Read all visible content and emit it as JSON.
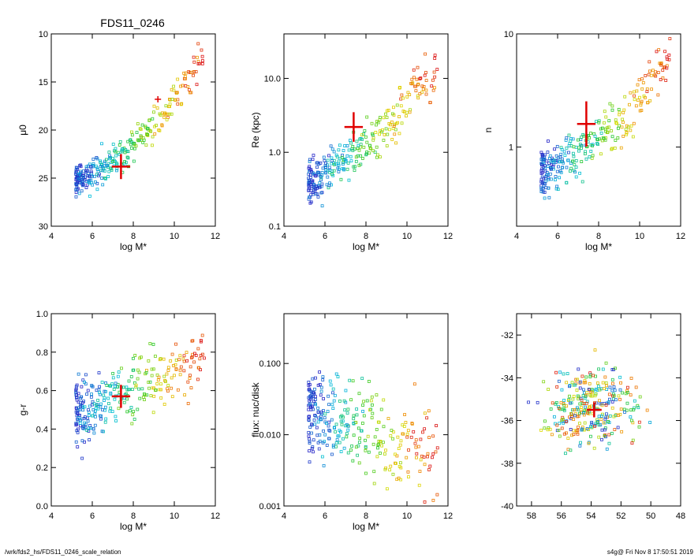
{
  "figure_title": "FDS11_0246",
  "footer": {
    "left": "/wrk/fds2_hs/FDS11_0246_scale_relation",
    "right": "s4g@  Fri Nov  8 17:50:51 2019"
  },
  "colors": {
    "marker": "#e00000",
    "axis": "#000000"
  },
  "chart_data": [
    {
      "id": "mu0",
      "type": "scatter",
      "title": "FDS11_0246",
      "xlabel": "log M*",
      "ylabel": "μ0",
      "xlim": [
        4,
        12
      ],
      "ylim": [
        30,
        10
      ],
      "xticks": [
        4,
        6,
        8,
        10,
        12
      ],
      "yticks": [
        10,
        15,
        20,
        25,
        30
      ],
      "yticklabels": [
        "10",
        "15",
        "20",
        "25",
        "30"
      ],
      "cloud": {
        "trend": [
          [
            5.5,
            25.2
          ],
          [
            7.5,
            22.5
          ],
          [
            9.5,
            18.5
          ],
          [
            11.5,
            12
          ]
        ],
        "scatter": 1.2
      },
      "target": {
        "x": 7.4,
        "y": 23.8,
        "xerr": 0.45,
        "yerr": 1.3
      },
      "other_point": {
        "x": 9.2,
        "y": 16.8
      }
    },
    {
      "id": "re",
      "type": "scatter",
      "xlabel": "log M*",
      "ylabel": "Re (kpc)",
      "ylog": true,
      "xlim": [
        4,
        12
      ],
      "ylim": [
        0.1,
        40
      ],
      "xticks": [
        4,
        6,
        8,
        10,
        12
      ],
      "yticks": [
        0.1,
        1.0,
        10.0
      ],
      "yticklabels": [
        "0.1",
        "1.0",
        "10.0"
      ],
      "cloud": {
        "trend": [
          [
            5.5,
            0.4
          ],
          [
            7.5,
            1.0
          ],
          [
            9.5,
            2.5
          ],
          [
            11.5,
            12
          ]
        ],
        "scatter": 0.22
      },
      "target": {
        "x": 7.4,
        "y": 2.2,
        "xerr": 0.45,
        "yerr": 0.2
      }
    },
    {
      "id": "n",
      "type": "scatter",
      "xlabel": "log M*",
      "ylabel": "n",
      "ylog": true,
      "xlim": [
        4,
        12
      ],
      "ylim": [
        0.2,
        10
      ],
      "xticks": [
        4,
        6,
        8,
        10,
        12
      ],
      "yticks": [
        1,
        10
      ],
      "yticklabels": [
        "1",
        "10"
      ],
      "cloud": {
        "trend": [
          [
            5.5,
            0.6
          ],
          [
            7.5,
            1.0
          ],
          [
            9.5,
            1.8
          ],
          [
            11.5,
            6
          ]
        ],
        "scatter": 0.15
      },
      "target": {
        "x": 7.4,
        "y": 1.6,
        "xerr": 0.45,
        "yerr": 0.2
      }
    },
    {
      "id": "gr",
      "type": "scatter",
      "xlabel": "log M*",
      "ylabel": "g-r",
      "xlim": [
        4,
        12
      ],
      "ylim": [
        0.0,
        1.0
      ],
      "xticks": [
        4,
        6,
        8,
        10,
        12
      ],
      "yticks": [
        0.0,
        0.2,
        0.4,
        0.6,
        0.8,
        1.0
      ],
      "yticklabels": [
        "0.0",
        "0.2",
        "0.4",
        "0.6",
        "0.8",
        "1.0"
      ],
      "cloud": {
        "trend": [
          [
            5.5,
            0.5
          ],
          [
            7.5,
            0.58
          ],
          [
            9.5,
            0.68
          ],
          [
            11.5,
            0.78
          ]
        ],
        "scatter": 0.12
      },
      "target": {
        "x": 7.4,
        "y": 0.57,
        "xerr": 0.45,
        "yerr": 0.06
      }
    },
    {
      "id": "flux",
      "type": "scatter",
      "xlabel": "log M*",
      "ylabel": "flux: nuc/disk",
      "ylog": true,
      "xlim": [
        4,
        12
      ],
      "ylim": [
        0.001,
        0.5
      ],
      "xticks": [
        4,
        6,
        8,
        10,
        12
      ],
      "yticks": [
        0.001,
        0.01,
        0.1
      ],
      "yticklabels": [
        "0.001",
        "0.010",
        "0.100"
      ],
      "cloud": {
        "trend": [
          [
            5.5,
            0.02
          ],
          [
            7.5,
            0.012
          ],
          [
            9.5,
            0.008
          ],
          [
            11.5,
            0.005
          ]
        ],
        "scatter": 0.45
      }
    },
    {
      "id": "radec",
      "type": "scatter",
      "xlabel": "",
      "ylabel": "",
      "xlim": [
        59,
        48
      ],
      "ylim": [
        -40,
        -31
      ],
      "xticks": [
        58,
        56,
        54,
        52,
        50,
        48
      ],
      "yticks": [
        -40,
        -38,
        -36,
        -34,
        -32
      ],
      "yticklabels": [
        "-40",
        "-38",
        "-36",
        "-34",
        "-32"
      ],
      "cloud": {
        "center": [
          54,
          -35.4
        ],
        "spread": [
          2.2,
          1.3
        ]
      },
      "target": {
        "x": 53.8,
        "y": -35.5,
        "xerr": 0.5,
        "yerr": 0.35
      }
    }
  ]
}
